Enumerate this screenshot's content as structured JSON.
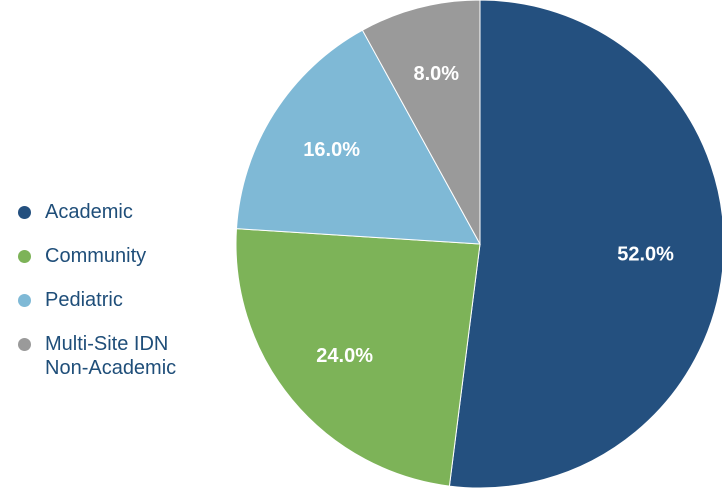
{
  "chart_data": {
    "type": "pie",
    "categories": [
      "Academic",
      "Community",
      "Pediatric",
      "Multi-Site IDN Non-Academic"
    ],
    "values": [
      52.0,
      24.0,
      16.0,
      8.0
    ],
    "labels": [
      "52.0%",
      "24.0%",
      "16.0%",
      "8.0%"
    ],
    "colors": [
      "#24507f",
      "#7db358",
      "#7fb9d6",
      "#9a9a9a"
    ],
    "start_angle_deg": 0,
    "direction": "clockwise",
    "legend_position": "left",
    "title": ""
  }
}
